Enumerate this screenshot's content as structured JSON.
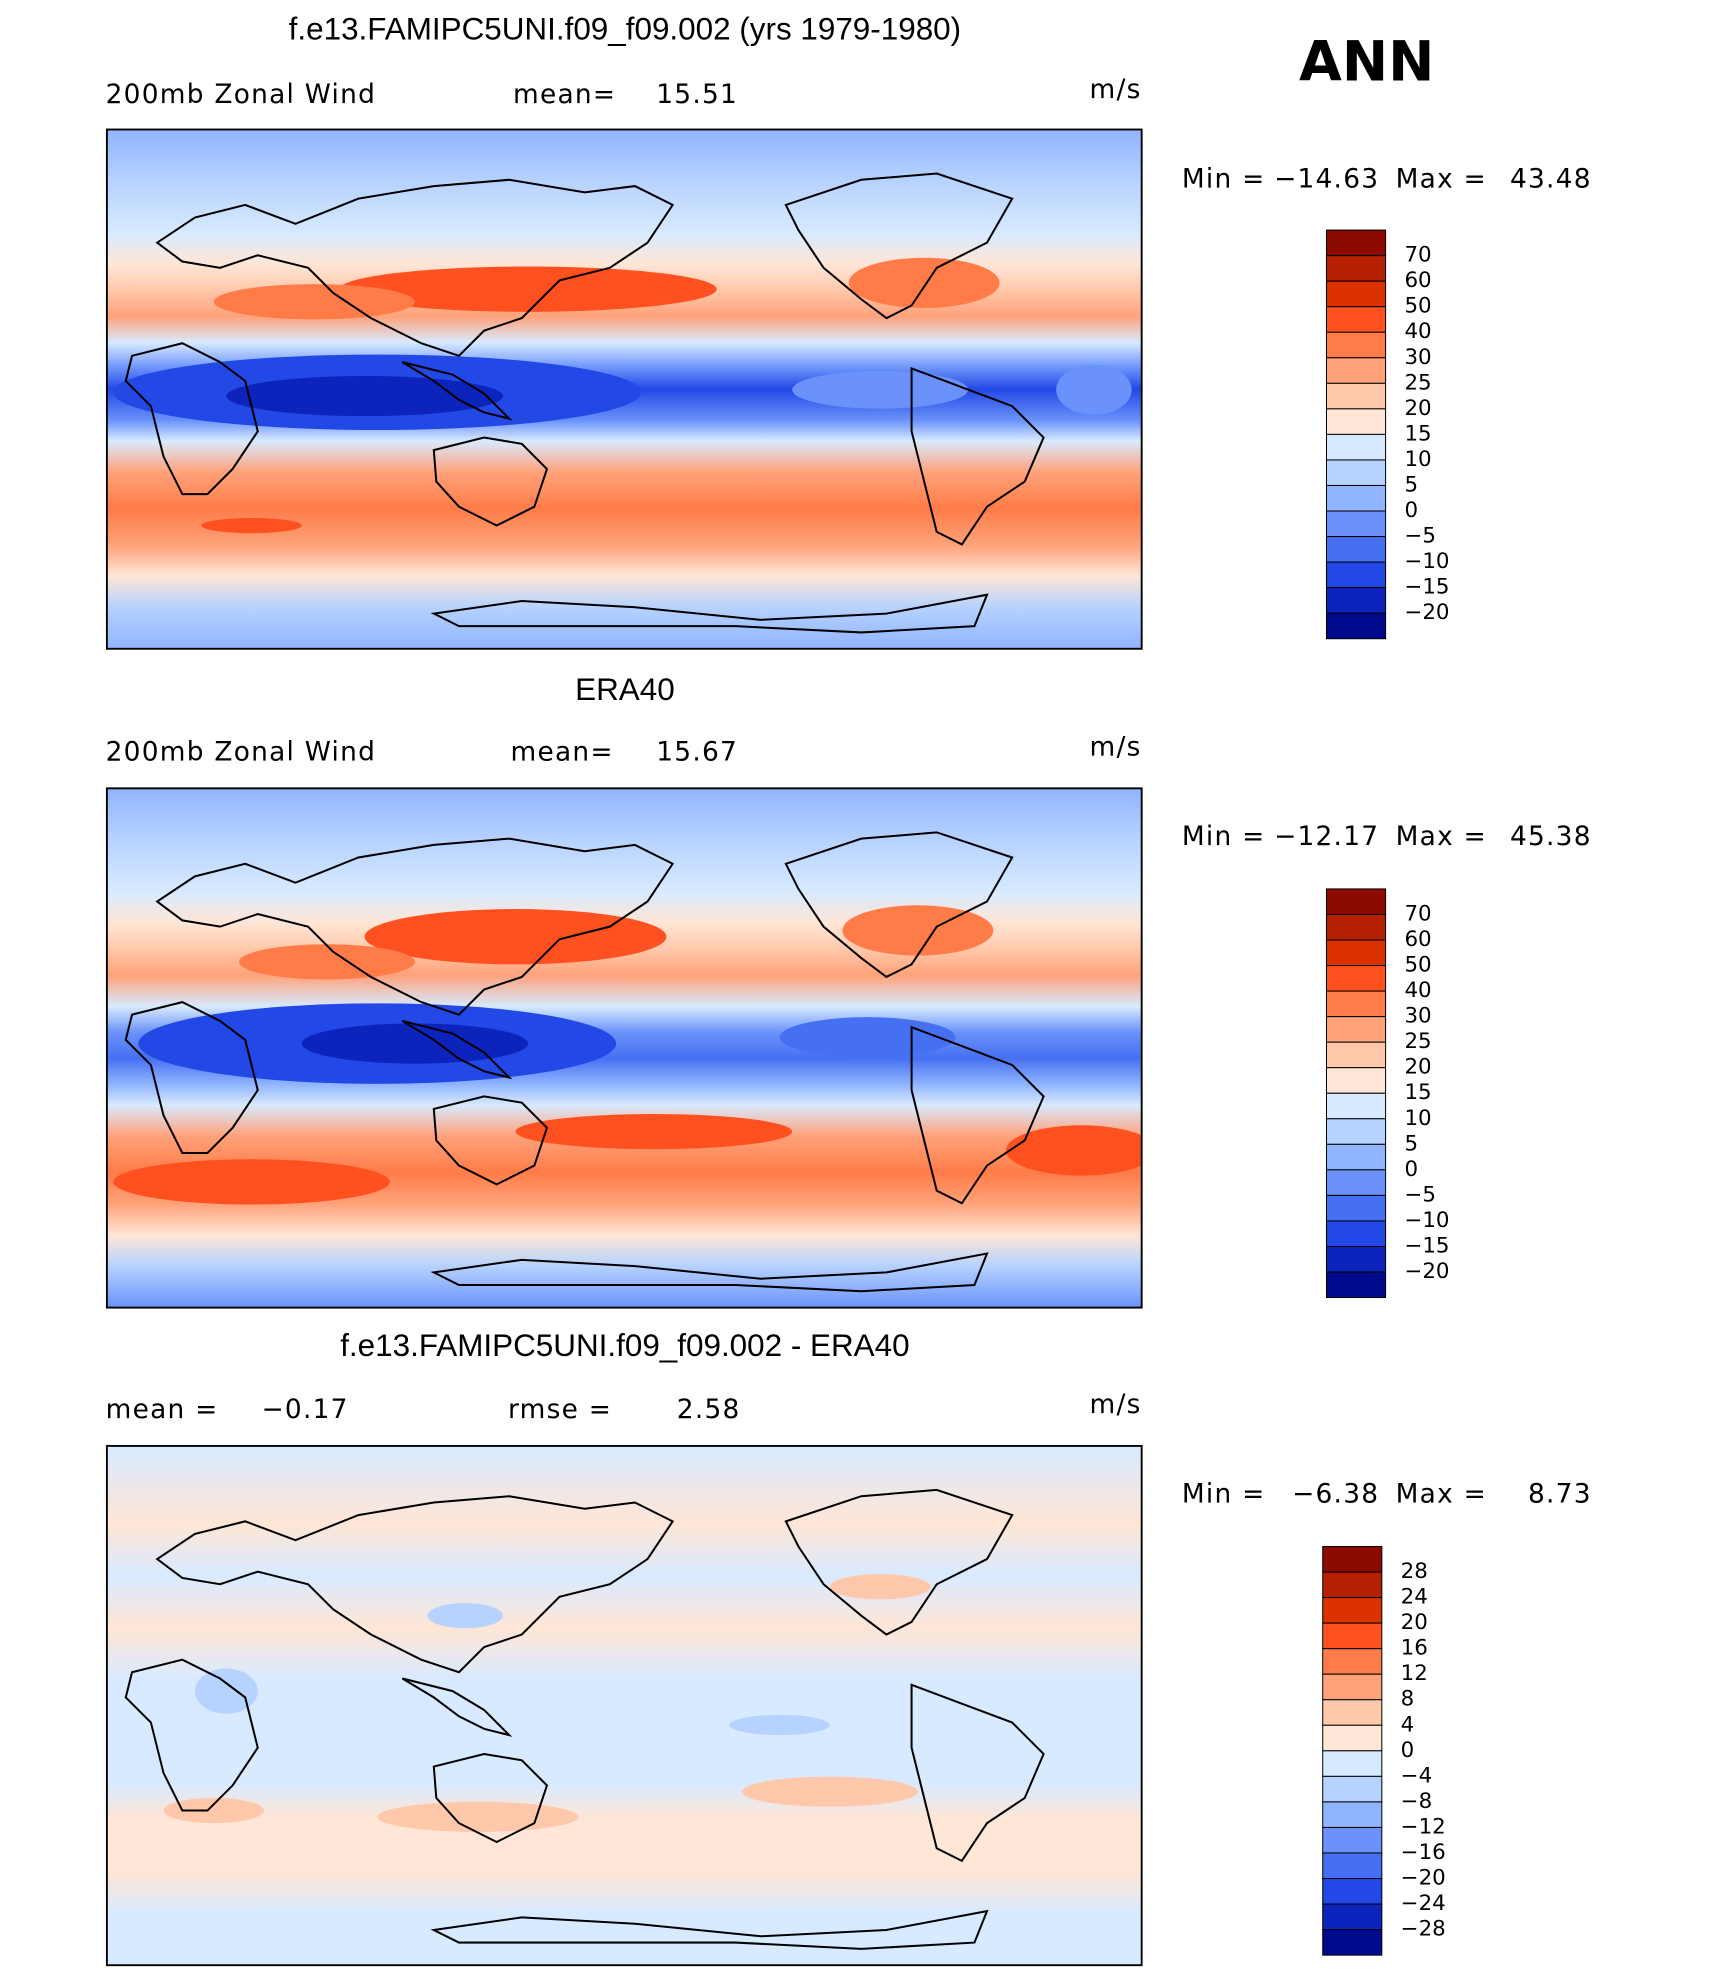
{
  "season": "ANN",
  "colors": [
    "#8c0a00",
    "#b42000",
    "#dc3200",
    "#ff5020",
    "#ff7c48",
    "#ffa27a",
    "#ffc8aa",
    "#ffe6d6",
    "#d8eaff",
    "#b6d2ff",
    "#90b4ff",
    "#6a92fa",
    "#4670f2",
    "#2248e6",
    "#0c24bc",
    "#000a8c"
  ],
  "panels": [
    {
      "title": "f.e13.FAMIPC5UNI.f09_f09.002 (yrs 1979-1980)",
      "left_labels": [
        "200mb  Zonal  Wind",
        "mean=",
        "15.51"
      ],
      "units": "m/s",
      "min_label": "Min  =",
      "min": "−14.63",
      "max_label": "Max  =",
      "max": "43.48",
      "levels": [
        "70",
        "60",
        "50",
        "40",
        "30",
        "25",
        "20",
        "15",
        "10",
        "5",
        "0",
        "−5",
        "−10",
        "−15",
        "−20"
      ]
    },
    {
      "title": "ERA40",
      "left_labels": [
        "200mb  Zonal  Wind",
        "mean=",
        "15.67"
      ],
      "units": "m/s",
      "min_label": "Min  =",
      "min": "−12.17",
      "max_label": "Max  =",
      "max": "45.38",
      "levels": [
        "70",
        "60",
        "50",
        "40",
        "30",
        "25",
        "20",
        "15",
        "10",
        "5",
        "0",
        "−5",
        "−10",
        "−15",
        "−20"
      ]
    },
    {
      "title": "f.e13.FAMIPC5UNI.f09_f09.002 - ERA40",
      "left_labels": [
        "mean  =",
        "−0.17",
        "rmse  =",
        "2.58"
      ],
      "units": "m/s",
      "min_label": "Min  =",
      "min": "−6.38",
      "max_label": "Max  =",
      "max": "8.73",
      "levels": [
        "28",
        "24",
        "20",
        "16",
        "12",
        "8",
        "4",
        "0",
        "−4",
        "−8",
        "−12",
        "−16",
        "−20",
        "−24",
        "−28"
      ]
    }
  ]
}
